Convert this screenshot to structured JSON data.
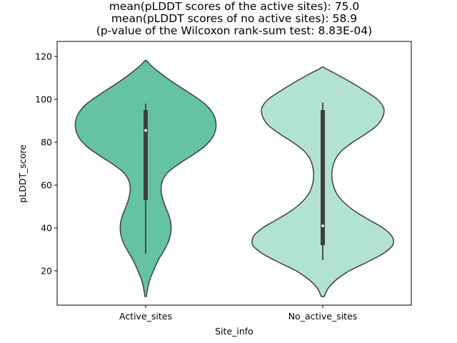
{
  "chart_data": {
    "type": "violin",
    "title": [
      "mean(pLDDT scores of the active sites): 75.0",
      "mean(pLDDT scores of no active sites): 58.9",
      "(p-value of the Wilcoxon rank-sum test: 8.83E-04)"
    ],
    "xlabel": "Site_info",
    "ylabel": "pLDDT_score",
    "ylim": [
      4,
      127
    ],
    "yticks": [
      20,
      40,
      60,
      80,
      100,
      120
    ],
    "grid": false,
    "categories": [
      "Active_sites",
      "No_active_sites"
    ],
    "violins": [
      {
        "category": "Active_sites",
        "color": "#66c2a5",
        "min": 8,
        "max": 118,
        "whisker_low": 28,
        "q1": 53,
        "median": 85.5,
        "q3": 95,
        "whisker_high": 98,
        "density": [
          [
            8,
            0.01
          ],
          [
            12,
            0.03
          ],
          [
            16,
            0.06
          ],
          [
            20,
            0.11
          ],
          [
            25,
            0.18
          ],
          [
            30,
            0.27
          ],
          [
            34,
            0.33
          ],
          [
            38,
            0.36
          ],
          [
            42,
            0.36
          ],
          [
            46,
            0.33
          ],
          [
            50,
            0.28
          ],
          [
            54,
            0.24
          ],
          [
            58,
            0.22
          ],
          [
            62,
            0.24
          ],
          [
            66,
            0.32
          ],
          [
            70,
            0.48
          ],
          [
            74,
            0.67
          ],
          [
            78,
            0.84
          ],
          [
            82,
            0.95
          ],
          [
            86,
            1.0
          ],
          [
            90,
            1.0
          ],
          [
            94,
            0.95
          ],
          [
            98,
            0.84
          ],
          [
            102,
            0.67
          ],
          [
            106,
            0.48
          ],
          [
            110,
            0.3
          ],
          [
            114,
            0.14
          ],
          [
            116,
            0.07
          ],
          [
            118,
            0.01
          ]
        ]
      },
      {
        "category": "No_active_sites",
        "color": "#b2e2d3",
        "min": 8,
        "max": 115,
        "whisker_low": 25,
        "q1": 32,
        "median": 41,
        "q3": 95,
        "whisker_high": 98.5,
        "density": [
          [
            8,
            0.02
          ],
          [
            12,
            0.08
          ],
          [
            16,
            0.2
          ],
          [
            20,
            0.38
          ],
          [
            24,
            0.63
          ],
          [
            28,
            0.86
          ],
          [
            32,
            1.0
          ],
          [
            36,
            0.99
          ],
          [
            40,
            0.86
          ],
          [
            44,
            0.65
          ],
          [
            48,
            0.45
          ],
          [
            52,
            0.3
          ],
          [
            56,
            0.2
          ],
          [
            60,
            0.15
          ],
          [
            64,
            0.13
          ],
          [
            68,
            0.14
          ],
          [
            72,
            0.18
          ],
          [
            76,
            0.27
          ],
          [
            80,
            0.43
          ],
          [
            84,
            0.62
          ],
          [
            88,
            0.78
          ],
          [
            92,
            0.86
          ],
          [
            96,
            0.87
          ],
          [
            100,
            0.78
          ],
          [
            104,
            0.6
          ],
          [
            108,
            0.4
          ],
          [
            112,
            0.18
          ],
          [
            114,
            0.06
          ],
          [
            115,
            0.01
          ]
        ]
      }
    ]
  }
}
